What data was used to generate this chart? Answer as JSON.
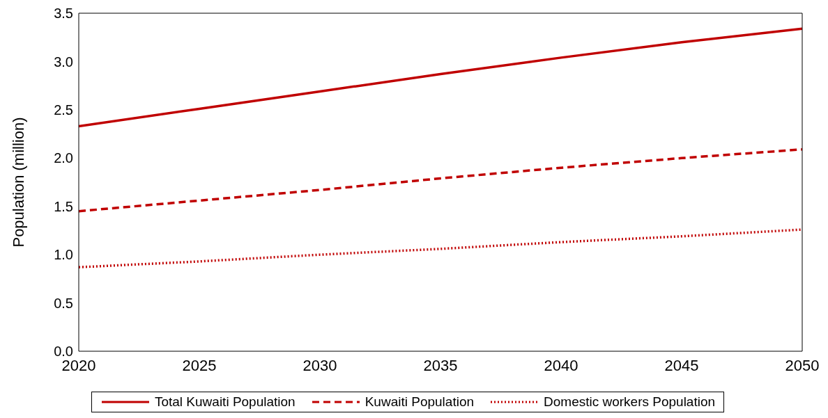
{
  "chart_data": {
    "type": "line",
    "ylabel": "Population (million)",
    "x": [
      2020,
      2025,
      2030,
      2035,
      2040,
      2045,
      2050
    ],
    "xlim": [
      2020,
      2050
    ],
    "xticks": [
      2020,
      2025,
      2030,
      2035,
      2040,
      2045,
      2050
    ],
    "ylim": [
      0,
      3.5
    ],
    "yticks": [
      {
        "value": 0,
        "label": "0.0"
      },
      {
        "value": 0.5,
        "label": "0.5"
      },
      {
        "value": 1,
        "label": "1.0"
      },
      {
        "value": 1.5,
        "label": "1.5"
      },
      {
        "value": 2,
        "label": "2.0"
      },
      {
        "value": 2.5,
        "label": "2.5"
      },
      {
        "value": 3,
        "label": "3.0"
      },
      {
        "value": 3.5,
        "label": "3.5"
      }
    ],
    "grid": false,
    "legend": "bottom",
    "marker": "none",
    "series": [
      {
        "name": "Total Kuwaiti Population",
        "color": "#c00000",
        "line_style": "solid",
        "values": [
          2.33,
          2.51,
          2.69,
          2.87,
          3.04,
          3.2,
          3.34
        ]
      },
      {
        "name": "Kuwaiti Population",
        "color": "#c00000",
        "line_style": "dashed",
        "values": [
          1.45,
          1.56,
          1.67,
          1.79,
          1.9,
          2.0,
          2.09
        ]
      },
      {
        "name": "Domestic workers Population",
        "color": "#c00000",
        "line_style": "dotted",
        "values": [
          0.87,
          0.93,
          1.0,
          1.06,
          1.13,
          1.19,
          1.26
        ]
      }
    ]
  }
}
